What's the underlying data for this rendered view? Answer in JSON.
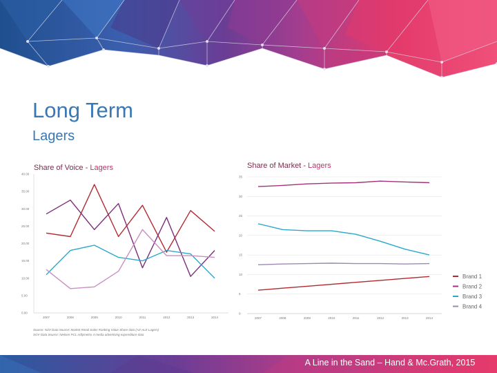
{
  "slide": {
    "title": "Long Term",
    "subtitle": "Lagers",
    "footer": "A Line in the Sand – Hand & Mc.Grath, 2015",
    "source_lines": [
      "Source: NZX Data Source: Market Retail Sales Ranking Value Share data (AZ-ALE Lagers)",
      "SOV Data Source: Nielsen PCL Adlymetrix 4 media advertising expenditure data"
    ]
  },
  "colors": {
    "title": "#3a78b4",
    "brand1": "#b3282e",
    "brand2": "#7b2d7b",
    "brand3": "#29a9c8",
    "brand4": "#c88fc0",
    "market_brand2": "#a3307a",
    "market_brand4": "#9a8ab0",
    "banner_pink": "#e73b6c",
    "banner_purple": "#5a3a8c",
    "banner_blue": "#2a6fb5"
  },
  "legend": {
    "placement": "right",
    "entries": [
      "Brand 1",
      "Brand 2",
      "Brand 3",
      "Brand 4"
    ]
  },
  "chart_data": [
    {
      "type": "line",
      "title": "Share of Voice - Lagers",
      "title_plain": "Share of Voice - ",
      "title_accent": "Lagers",
      "x": [
        "2007",
        "2008",
        "2009",
        "2010",
        "2011",
        "2012",
        "2013",
        "2014"
      ],
      "ylim": [
        0,
        40
      ],
      "yticks": [
        "0.00",
        "5.00",
        "10.00",
        "15.00",
        "20.00",
        "25.00",
        "30.00",
        "35.00",
        "40.00"
      ],
      "grid": false,
      "series": [
        {
          "name": "Brand 1",
          "values": [
            23,
            22,
            37,
            22,
            31,
            17.5,
            29.5,
            23.5
          ]
        },
        {
          "name": "Brand 2",
          "values": [
            28.5,
            32.5,
            24,
            31.5,
            13,
            27.5,
            10.5,
            18
          ]
        },
        {
          "name": "Brand 3",
          "values": [
            11,
            18,
            19.5,
            16,
            15,
            18,
            17,
            10
          ]
        },
        {
          "name": "Brand 4",
          "values": [
            12.5,
            7,
            7.5,
            12,
            24,
            16.5,
            16.5,
            16
          ]
        }
      ]
    },
    {
      "type": "line",
      "title": "Share of Market - Lagers",
      "title_plain": "Share of Market - ",
      "title_accent": "Lagers",
      "x": [
        "2007",
        "2008",
        "2009",
        "2010",
        "2011",
        "2012",
        "2013",
        "2014"
      ],
      "ylim": [
        0,
        35
      ],
      "yticks": [
        "0",
        "5",
        "10",
        "15",
        "20",
        "25",
        "30",
        "35"
      ],
      "grid": true,
      "series": [
        {
          "name": "Brand 1",
          "values": [
            6,
            6.5,
            7,
            7.5,
            8,
            8.5,
            9,
            9.5
          ]
        },
        {
          "name": "Brand 2",
          "values": [
            32.5,
            32.8,
            33.2,
            33.4,
            33.5,
            33.9,
            33.7,
            33.5
          ]
        },
        {
          "name": "Brand 3",
          "values": [
            23,
            21.5,
            21.2,
            21.2,
            20.3,
            18.5,
            16.5,
            15
          ]
        },
        {
          "name": "Brand 4",
          "values": [
            12.5,
            12.7,
            12.8,
            12.9,
            12.8,
            12.8,
            12.7,
            12.8
          ]
        }
      ]
    }
  ]
}
